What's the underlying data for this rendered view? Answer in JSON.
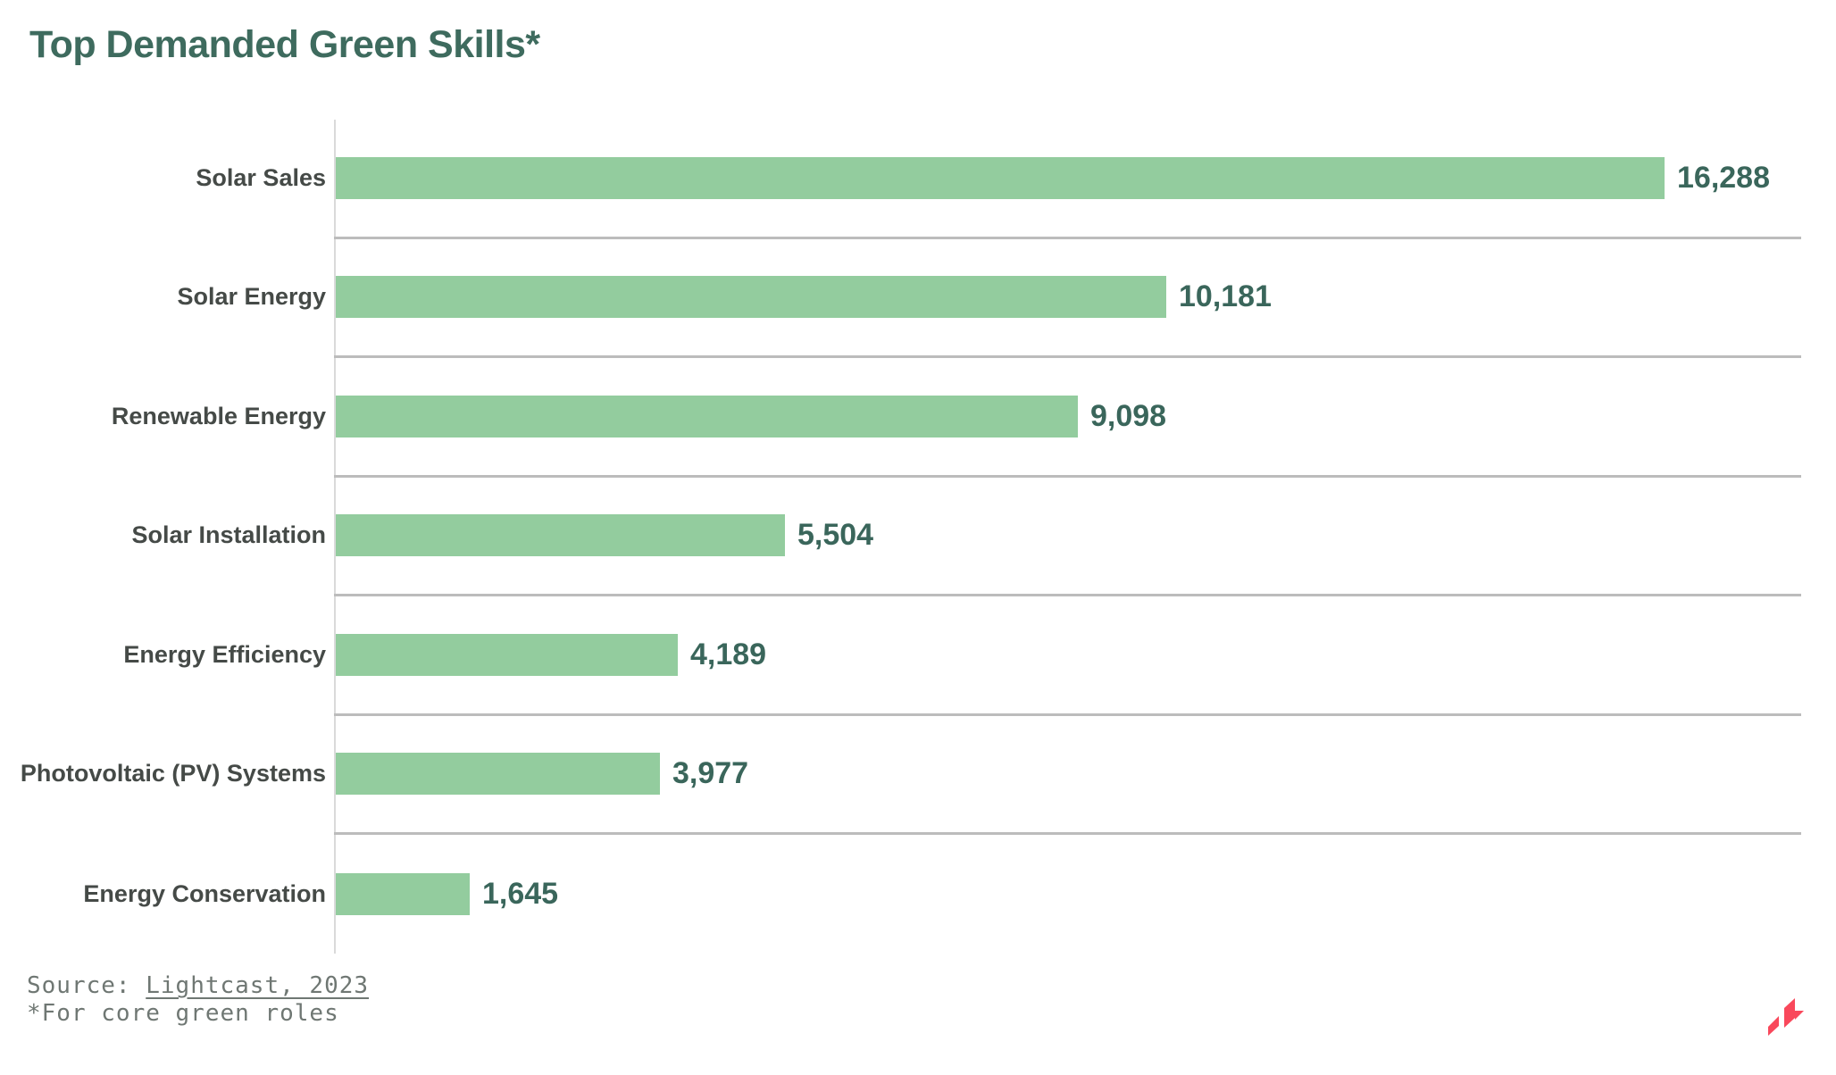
{
  "title": "Top Demanded Green Skills*",
  "footer": {
    "source_prefix": "Source: ",
    "source_link": "Lightcast, 2023",
    "footnote": "*For core green roles"
  },
  "logo": {
    "name": "lightcast-logo",
    "color": "#f9485b"
  },
  "colors": {
    "bar": "#93cc9e",
    "title": "#3e6b5e",
    "value_label": "#3a665b",
    "category_label": "#454a47",
    "separator": "#bcbcbc",
    "axis": "#dadada",
    "background": "#ffffff"
  },
  "chart_data": {
    "type": "bar",
    "orientation": "horizontal",
    "title": "Top Demanded Green Skills*",
    "categories": [
      "Solar Sales",
      "Solar Energy",
      "Renewable Energy",
      "Solar Installation",
      "Energy Efficiency",
      "Photovoltaic (PV) Systems",
      "Energy Conservation"
    ],
    "values": [
      16288,
      10181,
      9098,
      5504,
      4189,
      3977,
      1645
    ],
    "value_labels": [
      "16,288",
      "10,181",
      "9,098",
      "5,504",
      "4,189",
      "3,977",
      "1,645"
    ],
    "xlabel": "",
    "ylabel": "",
    "xlim": [
      0,
      18000
    ],
    "grid": false,
    "legend": false,
    "row_separators": true
  }
}
